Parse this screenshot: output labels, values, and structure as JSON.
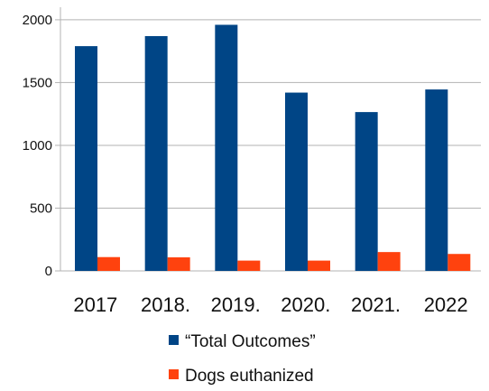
{
  "chart_data": {
    "type": "bar",
    "categories": [
      "2017",
      "2018.",
      "2019.",
      "2020.",
      "2021.",
      "2022"
    ],
    "series": [
      {
        "name": "“Total Outcomes”",
        "color": "#004586",
        "values": [
          1790,
          1870,
          1960,
          1420,
          1265,
          1445
        ]
      },
      {
        "name": "Dogs euthanized",
        "color": "#ff420e",
        "values": [
          110,
          108,
          82,
          82,
          150,
          135
        ]
      }
    ],
    "yticks": [
      "0",
      "500",
      "1000",
      "1500",
      "2000"
    ],
    "ylim": [
      0,
      2100
    ],
    "grid": true,
    "legend": "bottom"
  }
}
